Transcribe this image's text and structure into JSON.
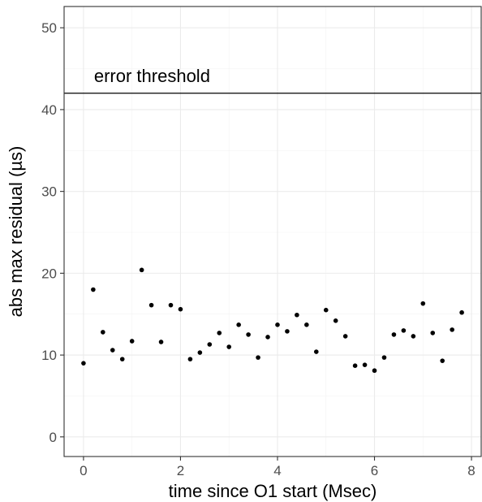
{
  "chart_data": {
    "type": "scatter",
    "xlabel": "time since O1 start (Msec)",
    "ylabel": "abs max residual (µs)",
    "xlim": [
      -0.4,
      8.2
    ],
    "ylim": [
      -2.4,
      52.6
    ],
    "x_ticks": [
      "0",
      "2",
      "4",
      "6",
      "8"
    ],
    "x_tick_values": [
      0,
      2,
      4,
      6,
      8
    ],
    "y_ticks": [
      "0",
      "10",
      "20",
      "30",
      "40",
      "50"
    ],
    "y_tick_values": [
      0,
      10,
      20,
      30,
      40,
      50
    ],
    "grid": true,
    "reference_line": {
      "y": 42,
      "label": "error threshold",
      "label_x": 0.2
    },
    "points": [
      {
        "x": 0.0,
        "y": 9.0
      },
      {
        "x": 0.2,
        "y": 18.0
      },
      {
        "x": 0.4,
        "y": 12.8
      },
      {
        "x": 0.6,
        "y": 10.6
      },
      {
        "x": 0.8,
        "y": 9.5
      },
      {
        "x": 1.0,
        "y": 11.7
      },
      {
        "x": 1.2,
        "y": 20.4
      },
      {
        "x": 1.4,
        "y": 16.1
      },
      {
        "x": 1.6,
        "y": 11.6
      },
      {
        "x": 1.8,
        "y": 16.1
      },
      {
        "x": 2.0,
        "y": 15.6
      },
      {
        "x": 2.2,
        "y": 9.5
      },
      {
        "x": 2.4,
        "y": 10.3
      },
      {
        "x": 2.6,
        "y": 11.3
      },
      {
        "x": 2.8,
        "y": 12.7
      },
      {
        "x": 3.0,
        "y": 11.0
      },
      {
        "x": 3.2,
        "y": 13.7
      },
      {
        "x": 3.4,
        "y": 12.5
      },
      {
        "x": 3.6,
        "y": 9.7
      },
      {
        "x": 3.8,
        "y": 12.2
      },
      {
        "x": 4.0,
        "y": 13.7
      },
      {
        "x": 4.2,
        "y": 12.9
      },
      {
        "x": 4.4,
        "y": 14.9
      },
      {
        "x": 4.6,
        "y": 13.7
      },
      {
        "x": 4.8,
        "y": 10.4
      },
      {
        "x": 5.0,
        "y": 15.5
      },
      {
        "x": 5.2,
        "y": 14.2
      },
      {
        "x": 5.4,
        "y": 12.3
      },
      {
        "x": 5.6,
        "y": 8.7
      },
      {
        "x": 5.8,
        "y": 8.8
      },
      {
        "x": 6.0,
        "y": 8.1
      },
      {
        "x": 6.2,
        "y": 9.7
      },
      {
        "x": 6.4,
        "y": 12.5
      },
      {
        "x": 6.6,
        "y": 13.0
      },
      {
        "x": 6.8,
        "y": 12.3
      },
      {
        "x": 7.0,
        "y": 16.3
      },
      {
        "x": 7.2,
        "y": 12.7
      },
      {
        "x": 7.4,
        "y": 9.3
      },
      {
        "x": 7.6,
        "y": 13.1
      },
      {
        "x": 7.8,
        "y": 15.2
      }
    ],
    "colors": {
      "points": "#000000",
      "threshold_line": "#000000",
      "grid": "#ebebeb",
      "panel_border": "#333333"
    }
  }
}
